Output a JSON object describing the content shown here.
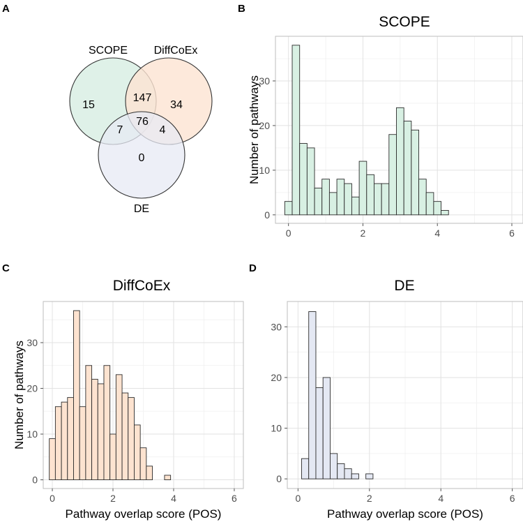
{
  "panels": [
    {
      "letter": "A"
    },
    {
      "letter": "B"
    },
    {
      "letter": "C"
    },
    {
      "letter": "D"
    }
  ],
  "venn": {
    "circles": [
      {
        "label": "SCOPE",
        "color": "#dcefe6"
      },
      {
        "label": "DiffCoEx",
        "color": "#fde3d2"
      },
      {
        "label": "DE",
        "color": "#e7eaf4"
      }
    ],
    "counts": {
      "scope_only": "15",
      "diffcoex_only": "34",
      "de_only": "0",
      "scope_diffcoex": "147",
      "scope_de": "7",
      "diffcoex_de": "4",
      "all_three": "76"
    }
  },
  "chart_data": [
    {
      "type": "bar",
      "panel": "B",
      "title": "SCOPE",
      "xlabel": "",
      "ylabel": "Number of pathways",
      "fill": "#d8f0e3",
      "xlim": [
        -0.35,
        6.3
      ],
      "ylim": [
        -1.9,
        40
      ],
      "xticks": [
        0,
        2,
        4,
        6
      ],
      "yticks": [
        0,
        10,
        20,
        30
      ],
      "bin_width": 0.2,
      "bin_start": -0.1,
      "values": [
        3,
        38,
        16,
        15,
        6,
        8,
        5,
        8,
        7,
        4,
        12,
        9,
        7,
        7,
        18,
        24,
        21,
        19,
        8,
        5,
        3,
        1
      ]
    },
    {
      "type": "bar",
      "panel": "C",
      "title": "DiffCoEx",
      "xlabel": "Pathway overlap score (POS)",
      "ylabel": "Number of pathways",
      "fill": "#fde3d0",
      "xlim": [
        -0.3,
        6.3
      ],
      "ylim": [
        -1.9,
        39
      ],
      "xticks": [
        0,
        2,
        4,
        6
      ],
      "yticks": [
        0,
        10,
        20,
        30
      ],
      "bin_width": 0.2,
      "bin_start": -0.1,
      "values": [
        9,
        16,
        17,
        18,
        37,
        16,
        25,
        22,
        21,
        25,
        10,
        23,
        19,
        18,
        12,
        7,
        3,
        0,
        0,
        1
      ]
    },
    {
      "type": "bar",
      "panel": "D",
      "title": "DE",
      "xlabel": "Pathway overlap score (POS)",
      "ylabel": "",
      "fill": "#e4e8f3",
      "xlim": [
        -0.3,
        6.3
      ],
      "ylim": [
        -1.9,
        35
      ],
      "xticks": [
        0,
        2,
        4,
        6
      ],
      "yticks": [
        0,
        10,
        20,
        30
      ],
      "bin_width": 0.2,
      "bin_start": 0.1,
      "values": [
        4,
        33,
        18,
        20,
        5,
        3,
        2,
        1,
        0,
        1
      ]
    }
  ]
}
